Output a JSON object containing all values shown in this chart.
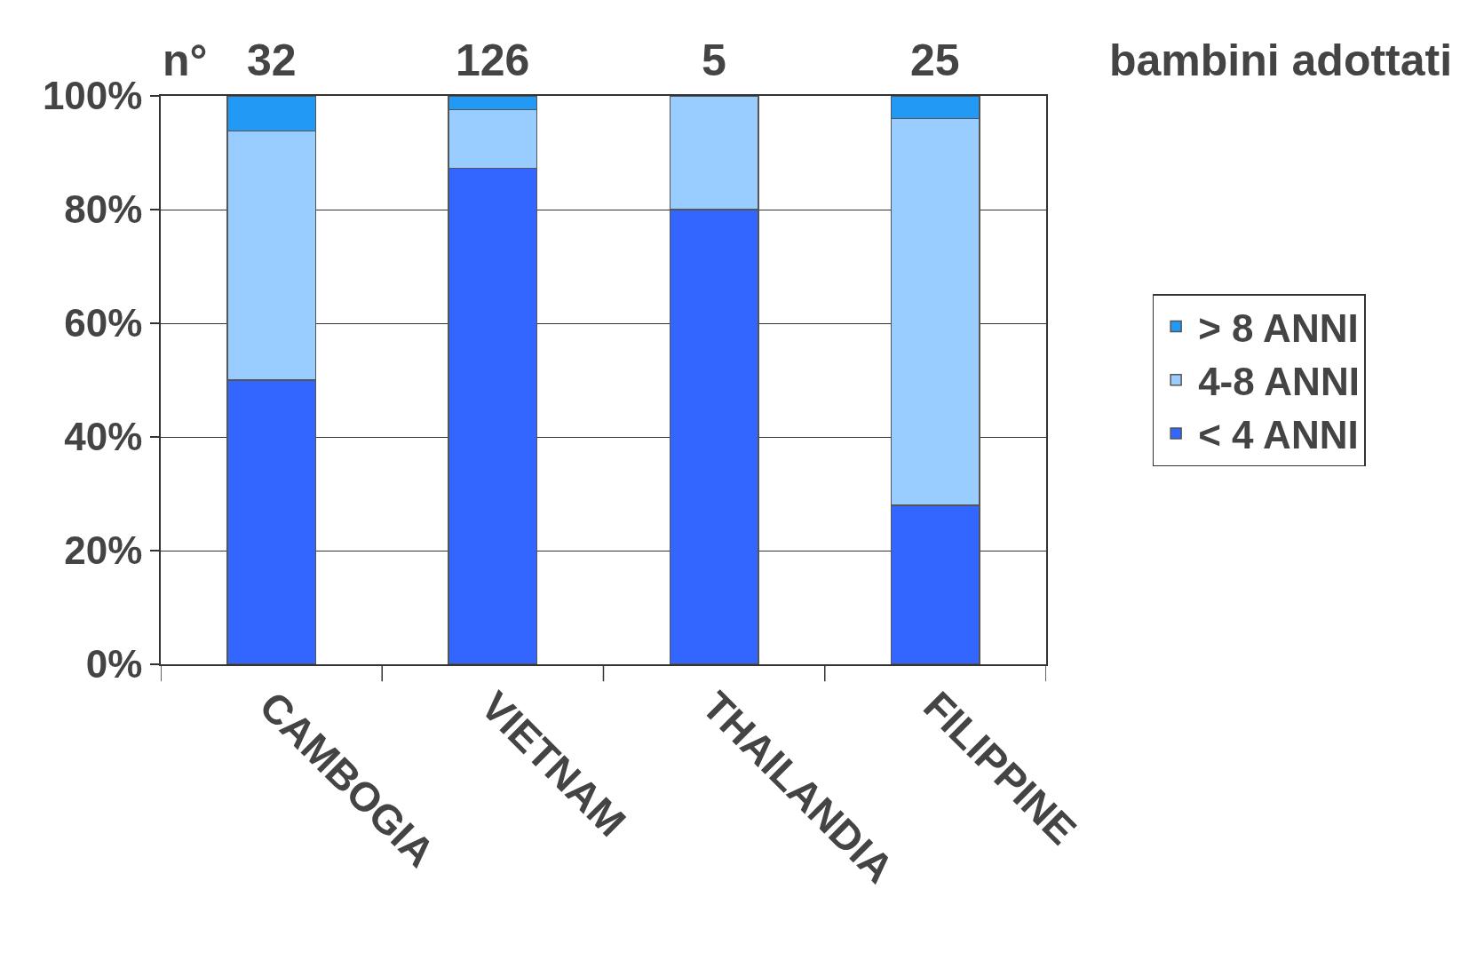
{
  "chart_data": {
    "type": "bar",
    "stacked": true,
    "categories": [
      "CAMBOGIA",
      "VIETNAM",
      "THAILANDIA",
      "FILIPPINE"
    ],
    "series": [
      {
        "name": "< 4 ANNI",
        "color": "#3366ff",
        "values": [
          50,
          87.3,
          80,
          28
        ]
      },
      {
        "name": "4-8 ANNI",
        "color": "#99ccff",
        "values": [
          43.8,
          10.3,
          20,
          68
        ]
      },
      {
        "name": "> 8 ANNI",
        "color": "#2299f5",
        "values": [
          6.2,
          2.4,
          null,
          4
        ]
      }
    ],
    "ylim": [
      0,
      100
    ],
    "yticks": [
      {
        "value": 0,
        "label": "0%"
      },
      {
        "value": 20,
        "label": "20%"
      },
      {
        "value": 40,
        "label": "40%"
      },
      {
        "value": 60,
        "label": "60%"
      },
      {
        "value": 80,
        "label": "80%"
      },
      {
        "value": 100,
        "label": "100%"
      }
    ],
    "grid": "y",
    "legend": "right",
    "annotations": [
      "n°",
      "32",
      "126",
      "5",
      "25",
      "bambini adottati"
    ]
  }
}
